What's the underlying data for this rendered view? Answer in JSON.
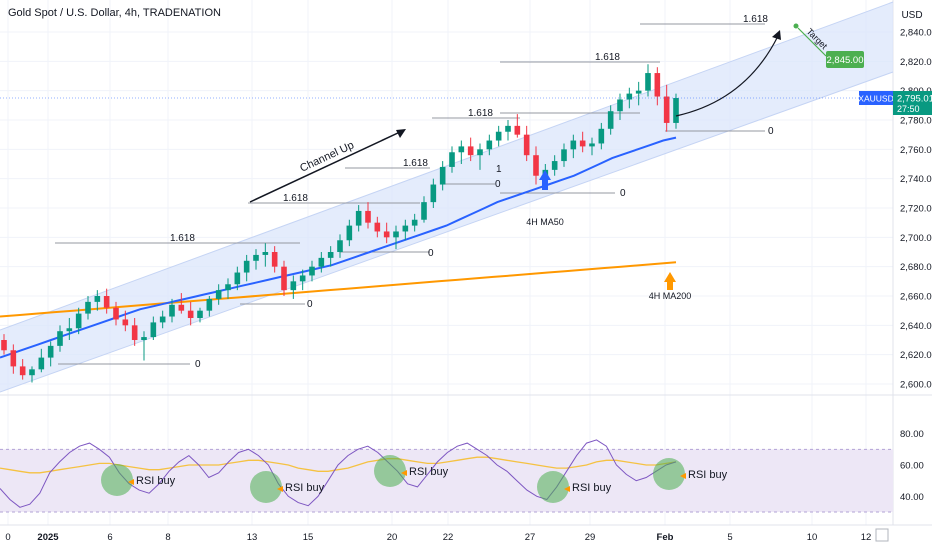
{
  "header": {
    "title": "Gold Spot / U.S. Dollar, 4h, TRADENATION",
    "currency": "USD"
  },
  "colors": {
    "up": "#089981",
    "down": "#f23645",
    "ma50": "#2962ff",
    "ma200": "#ff9800",
    "channel": "#dbe6fb",
    "rsi_line": "#7e57c2",
    "rsi_ma": "#f5c242",
    "rsi_band": "#ede7f6",
    "green_circle": "#4caf50",
    "target_box": "#4caf50",
    "price_tag": "#2962ff"
  },
  "chart_data": {
    "type": "candlestick",
    "symbol": "XAUUSD",
    "y_axis": {
      "ticks": [
        "2,840.00",
        "2,820.00",
        "2,800.00",
        "2,780.00",
        "2,760.00",
        "2,740.00",
        "2,720.00",
        "2,700.00",
        "2,680.00",
        "2,660.00",
        "2,640.00",
        "2,620.00",
        "2,600.00"
      ],
      "range": [
        2600,
        2840
      ]
    },
    "x_axis": {
      "ticks": [
        "0",
        "2025",
        "6",
        "8",
        "13",
        "15",
        "20",
        "22",
        "27",
        "29",
        "Feb",
        "5",
        "10",
        "12"
      ]
    },
    "last_price": {
      "label": "XAUUSD",
      "value": "2,795.01",
      "countdown": "27:50"
    },
    "ohlc": [
      [
        2630,
        2634,
        2620,
        2623
      ],
      [
        2623,
        2627,
        2607,
        2612
      ],
      [
        2612,
        2617,
        2603,
        2606
      ],
      [
        2606,
        2612,
        2601,
        2610
      ],
      [
        2610,
        2624,
        2608,
        2618
      ],
      [
        2618,
        2629,
        2612,
        2626
      ],
      [
        2626,
        2640,
        2622,
        2636
      ],
      [
        2636,
        2645,
        2630,
        2638
      ],
      [
        2638,
        2652,
        2634,
        2648
      ],
      [
        2648,
        2660,
        2644,
        2656
      ],
      [
        2656,
        2664,
        2650,
        2660
      ],
      [
        2660,
        2665,
        2648,
        2652
      ],
      [
        2652,
        2656,
        2640,
        2644
      ],
      [
        2644,
        2650,
        2636,
        2640
      ],
      [
        2640,
        2645,
        2626,
        2630
      ],
      [
        2630,
        2636,
        2616,
        2632
      ],
      [
        2632,
        2646,
        2630,
        2642
      ],
      [
        2642,
        2650,
        2638,
        2646
      ],
      [
        2646,
        2658,
        2642,
        2654
      ],
      [
        2654,
        2662,
        2648,
        2650
      ],
      [
        2650,
        2656,
        2640,
        2645
      ],
      [
        2645,
        2652,
        2642,
        2650
      ],
      [
        2650,
        2660,
        2646,
        2658
      ],
      [
        2658,
        2668,
        2654,
        2664
      ],
      [
        2664,
        2672,
        2658,
        2668
      ],
      [
        2668,
        2680,
        2664,
        2676
      ],
      [
        2676,
        2688,
        2670,
        2684
      ],
      [
        2684,
        2692,
        2678,
        2688
      ],
      [
        2688,
        2696,
        2680,
        2690
      ],
      [
        2690,
        2694,
        2676,
        2680
      ],
      [
        2680,
        2684,
        2660,
        2664
      ],
      [
        2664,
        2674,
        2658,
        2670
      ],
      [
        2670,
        2678,
        2664,
        2674
      ],
      [
        2674,
        2684,
        2670,
        2680
      ],
      [
        2680,
        2690,
        2676,
        2686
      ],
      [
        2686,
        2694,
        2680,
        2690
      ],
      [
        2690,
        2702,
        2686,
        2698
      ],
      [
        2698,
        2712,
        2694,
        2708
      ],
      [
        2708,
        2722,
        2704,
        2718
      ],
      [
        2718,
        2724,
        2706,
        2710
      ],
      [
        2710,
        2714,
        2700,
        2704
      ],
      [
        2704,
        2710,
        2696,
        2700
      ],
      [
        2700,
        2708,
        2692,
        2704
      ],
      [
        2704,
        2712,
        2698,
        2708
      ],
      [
        2708,
        2716,
        2704,
        2712
      ],
      [
        2712,
        2728,
        2710,
        2724
      ],
      [
        2724,
        2740,
        2720,
        2736
      ],
      [
        2736,
        2752,
        2732,
        2748
      ],
      [
        2748,
        2762,
        2744,
        2758
      ],
      [
        2758,
        2766,
        2750,
        2762
      ],
      [
        2762,
        2768,
        2752,
        2756
      ],
      [
        2756,
        2764,
        2746,
        2760
      ],
      [
        2760,
        2770,
        2756,
        2766
      ],
      [
        2766,
        2776,
        2762,
        2772
      ],
      [
        2772,
        2780,
        2766,
        2776
      ],
      [
        2776,
        2784,
        2768,
        2770
      ],
      [
        2770,
        2776,
        2752,
        2756
      ],
      [
        2756,
        2762,
        2736,
        2742
      ],
      [
        2742,
        2750,
        2734,
        2746
      ],
      [
        2746,
        2756,
        2742,
        2752
      ],
      [
        2752,
        2764,
        2748,
        2760
      ],
      [
        2760,
        2770,
        2754,
        2766
      ],
      [
        2766,
        2772,
        2758,
        2762
      ],
      [
        2762,
        2768,
        2756,
        2764
      ],
      [
        2764,
        2778,
        2760,
        2774
      ],
      [
        2774,
        2790,
        2770,
        2786
      ],
      [
        2786,
        2798,
        2780,
        2794
      ],
      [
        2794,
        2802,
        2788,
        2798
      ],
      [
        2798,
        2806,
        2790,
        2800
      ],
      [
        2800,
        2818,
        2796,
        2812
      ],
      [
        2812,
        2816,
        2790,
        2796
      ],
      [
        2796,
        2804,
        2772,
        2778
      ],
      [
        2778,
        2798,
        2774,
        2795
      ]
    ],
    "ma50": [
      2618,
      2621,
      2624,
      2627,
      2630,
      2633,
      2636,
      2639,
      2642,
      2645,
      2648,
      2651,
      2653,
      2655,
      2657,
      2659,
      2661,
      2663,
      2665,
      2667,
      2669,
      2671,
      2673,
      2675,
      2677,
      2679,
      2681,
      2684,
      2687,
      2690,
      2693,
      2696,
      2699,
      2702,
      2705,
      2708,
      2712,
      2716,
      2720,
      2724,
      2727,
      2730,
      2733,
      2736,
      2739,
      2742,
      2746,
      2750,
      2754,
      2757,
      2760,
      2763,
      2766,
      2768
    ],
    "ma200": [
      2646,
      2647,
      2648,
      2649,
      2650,
      2651,
      2652,
      2653,
      2654,
      2655,
      2656,
      2657,
      2658,
      2659,
      2660,
      2661,
      2662,
      2663,
      2664,
      2665,
      2666,
      2667,
      2668,
      2669,
      2670,
      2671,
      2672,
      2673,
      2674,
      2675,
      2676,
      2677,
      2678,
      2679,
      2680,
      2681,
      2682,
      2683
    ],
    "fib_levels": [
      {
        "label": "1.618",
        "zero": "0",
        "one": ""
      },
      {
        "label": "1.618",
        "zero": "0",
        "one": "1"
      },
      {
        "label": "1.618",
        "zero": "0",
        "one": ""
      },
      {
        "label": "1.618",
        "zero": "0",
        "one": "1"
      },
      {
        "label": "1.618",
        "zero": "0",
        "one": ""
      },
      {
        "label": "1.618",
        "zero": "0",
        "one": "1"
      },
      {
        "label": "1.618",
        "zero": "0",
        "one": "1"
      }
    ],
    "annotations": {
      "channel": "Channel Up",
      "ma50_label": "4H MA50",
      "ma200_label": "4H MA200",
      "target_label": "Target",
      "target_value": "2,845.00"
    },
    "rsi": {
      "ticks": [
        "80.00",
        "60.00",
        "40.00"
      ],
      "range": [
        30,
        90
      ],
      "band": [
        30,
        70
      ],
      "values": [
        45,
        38,
        33,
        35,
        42,
        55,
        62,
        68,
        72,
        74,
        70,
        65,
        55,
        48,
        44,
        42,
        48,
        56,
        62,
        66,
        60,
        52,
        55,
        62,
        68,
        70,
        66,
        60,
        48,
        40,
        36,
        34,
        40,
        50,
        60,
        66,
        70,
        72,
        68,
        62,
        56,
        48,
        46,
        54,
        62,
        68,
        72,
        74,
        70,
        66,
        60,
        56,
        50,
        44,
        40,
        38,
        46,
        56,
        66,
        74,
        76,
        72,
        60,
        54,
        50,
        52,
        56,
        60,
        62
      ],
      "ma_values": [
        58,
        57,
        56,
        55,
        55,
        56,
        57,
        58,
        59,
        60,
        61,
        61,
        60,
        59,
        58,
        57,
        57,
        58,
        59,
        60,
        60,
        60,
        60,
        61,
        62,
        63,
        63,
        62,
        61,
        60,
        58,
        57,
        56,
        56,
        57,
        58,
        60,
        62,
        63,
        64,
        64,
        63,
        62,
        61,
        61,
        62,
        63,
        64,
        65,
        65,
        64,
        63,
        62,
        61,
        60,
        59,
        58,
        58,
        59,
        60,
        62,
        63,
        63,
        62,
        61,
        60,
        60,
        61,
        62
      ],
      "signals": [
        "RSI buy",
        "RSI buy",
        "RSI buy",
        "RSI buy",
        "RSI buy"
      ]
    }
  }
}
